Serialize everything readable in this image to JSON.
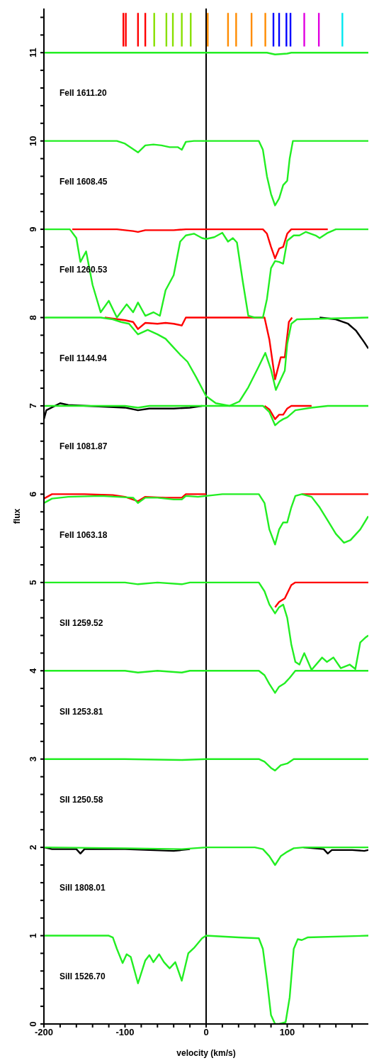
{
  "chart_data": {
    "type": "line",
    "xlabel": "velocity (km/s)",
    "ylabel": "flux",
    "xlim": [
      -200,
      200
    ],
    "xticks": [
      -200,
      {
        "value": -180,
        "label": null
      },
      {
        "value": -160,
        "label": null
      },
      {
        "value": -140,
        "label": null
      },
      {
        "value": -120,
        "label": null
      },
      -100,
      {
        "value": -80,
        "label": null
      },
      {
        "value": -60,
        "label": null
      },
      {
        "value": -40,
        "label": null
      },
      {
        "value": -20,
        "label": null
      },
      0,
      {
        "value": 20,
        "label": null
      },
      {
        "value": 40,
        "label": null
      },
      {
        "value": 60,
        "label": null
      },
      {
        "value": 80,
        "label": null
      },
      100,
      {
        "value": 120,
        "label": null
      },
      {
        "value": 140,
        "label": null
      },
      {
        "value": 160,
        "label": null
      },
      {
        "value": 180,
        "label": null
      }
    ],
    "ylim": [
      0,
      11.5
    ],
    "yticks": [
      0,
      {
        "value": 0.2,
        "label": null
      },
      {
        "value": 0.4,
        "label": null
      },
      {
        "value": 0.6,
        "label": null
      },
      {
        "value": 0.8,
        "label": null
      },
      1,
      {
        "value": 1.2,
        "label": null
      },
      {
        "value": 1.4,
        "label": null
      },
      {
        "value": 1.6,
        "label": null
      },
      {
        "value": 1.8,
        "label": null
      },
      2,
      {
        "value": 2.2,
        "label": null
      },
      {
        "value": 2.4,
        "label": null
      },
      {
        "value": 2.6,
        "label": null
      },
      {
        "value": 2.8,
        "label": null
      },
      3,
      {
        "value": 3.2,
        "label": null
      },
      {
        "value": 3.4,
        "label": null
      },
      {
        "value": 3.6,
        "label": null
      },
      {
        "value": 3.8,
        "label": null
      },
      4,
      {
        "value": 4.2,
        "label": null
      },
      {
        "value": 4.4,
        "label": null
      },
      {
        "value": 4.6,
        "label": null
      },
      {
        "value": 4.8,
        "label": null
      },
      5,
      {
        "value": 5.2,
        "label": null
      },
      {
        "value": 5.4,
        "label": null
      },
      {
        "value": 5.6,
        "label": null
      },
      {
        "value": 5.8,
        "label": null
      },
      6,
      {
        "value": 6.2,
        "label": null
      },
      {
        "value": 6.4,
        "label": null
      },
      {
        "value": 6.6,
        "label": null
      },
      {
        "value": 6.8,
        "label": null
      },
      7,
      {
        "value": 7.2,
        "label": null
      },
      {
        "value": 7.4,
        "label": null
      },
      {
        "value": 7.6,
        "label": null
      },
      {
        "value": 7.8,
        "label": null
      },
      8,
      {
        "value": 8.2,
        "label": null
      },
      {
        "value": 8.4,
        "label": null
      },
      {
        "value": 8.6,
        "label": null
      },
      {
        "value": 8.8,
        "label": null
      },
      9,
      {
        "value": 9.2,
        "label": null
      },
      {
        "value": 9.4,
        "label": null
      },
      {
        "value": 9.6,
        "label": null
      },
      {
        "value": 9.8,
        "label": null
      },
      10,
      {
        "value": 10.2,
        "label": null
      },
      {
        "value": 10.4,
        "label": null
      },
      {
        "value": 10.6,
        "label": null
      },
      {
        "value": 10.8,
        "label": null
      },
      11,
      {
        "value": 11.2,
        "label": null
      },
      {
        "value": 11.4,
        "label": null
      }
    ],
    "annotations": [
      "FeII 1611.20",
      "FeII 1608.45",
      "FeII 1260.53",
      "FeII 1144.94",
      "FeII 1081.87",
      "FeII 1063.18",
      "SII 1259.52",
      "SII 1253.81",
      "SII 1250.58",
      "SiII 1808.01",
      "SiII 1526.70"
    ],
    "ref_lines": [
      {
        "axis": "x",
        "value": 0,
        "color": "#000000"
      }
    ],
    "series": [
      {
        "color": "#ff0000",
        "x": [
          -102,
          -102
        ],
        "values": [
          11.07,
          11.45
        ]
      },
      {
        "color": "#ff0000",
        "x": [
          -99,
          -99
        ],
        "values": [
          11.07,
          11.45
        ]
      },
      {
        "color": "#ff0000",
        "x": [
          -84,
          -84
        ],
        "values": [
          11.07,
          11.45
        ]
      },
      {
        "color": "#ff0000",
        "x": [
          -75,
          -75
        ],
        "values": [
          11.07,
          11.45
        ]
      },
      {
        "color": "#88e000",
        "x": [
          -64,
          -64
        ],
        "values": [
          11.07,
          11.45
        ]
      },
      {
        "color": "#88e000",
        "x": [
          -49,
          -49
        ],
        "values": [
          11.07,
          11.45
        ]
      },
      {
        "color": "#88e000",
        "x": [
          -41,
          -41
        ],
        "values": [
          11.07,
          11.45
        ]
      },
      {
        "color": "#88e000",
        "x": [
          -30,
          -30
        ],
        "values": [
          11.07,
          11.45
        ]
      },
      {
        "color": "#88e000",
        "x": [
          -19,
          -19
        ],
        "values": [
          11.07,
          11.45
        ]
      },
      {
        "color": "#ff8c00",
        "x": [
          2,
          2
        ],
        "values": [
          11.07,
          11.45
        ]
      },
      {
        "color": "#ff8c00",
        "x": [
          27,
          27
        ],
        "values": [
          11.07,
          11.45
        ]
      },
      {
        "color": "#ff8c00",
        "x": [
          37,
          37
        ],
        "values": [
          11.07,
          11.45
        ]
      },
      {
        "color": "#ff8c00",
        "x": [
          56,
          56
        ],
        "values": [
          11.07,
          11.45
        ]
      },
      {
        "color": "#ff8c00",
        "x": [
          73,
          73
        ],
        "values": [
          11.07,
          11.45
        ]
      },
      {
        "color": "#0000ff",
        "x": [
          83,
          83
        ],
        "values": [
          11.07,
          11.45
        ]
      },
      {
        "color": "#0000ff",
        "x": [
          90,
          90
        ],
        "values": [
          11.07,
          11.45
        ]
      },
      {
        "color": "#0000ff",
        "x": [
          99,
          99
        ],
        "values": [
          11.07,
          11.45
        ]
      },
      {
        "color": "#0000ff",
        "x": [
          104,
          104
        ],
        "values": [
          11.07,
          11.45
        ]
      },
      {
        "color": "#e000e0",
        "x": [
          121,
          121
        ],
        "values": [
          11.07,
          11.45
        ]
      },
      {
        "color": "#e000e0",
        "x": [
          139,
          139
        ],
        "values": [
          11.07,
          11.45
        ]
      },
      {
        "color": "#00e8f0",
        "x": [
          168,
          168
        ],
        "values": [
          11.07,
          11.45
        ]
      },
      {
        "color": "#000000",
        "x": [
          140,
          160,
          175,
          185,
          195,
          200
        ],
        "values": [
          8,
          7.98,
          7.93,
          7.85,
          7.72,
          7.65
        ]
      },
      {
        "color": "#000000",
        "x": [
          -200,
          -197,
          -180,
          -170,
          -100,
          -84,
          -70,
          -40,
          -20,
          -5
        ],
        "values": [
          6.85,
          6.95,
          7.03,
          7.01,
          6.98,
          6.95,
          6.97,
          6.97,
          6.98,
          7
        ]
      },
      {
        "color": "#000000",
        "x": [
          -200,
          -190,
          -160,
          -155,
          -150,
          -100,
          -40,
          -20,
          0,
          120,
          145,
          150,
          155,
          180,
          195,
          200
        ],
        "values": [
          2,
          1.98,
          1.98,
          1.93,
          1.98,
          1.98,
          1.96,
          1.98,
          null,
          2,
          1.98,
          1.93,
          1.97,
          1.97,
          1.96,
          1.97
        ]
      },
      {
        "color": "#ff0000",
        "x": [
          -165,
          -110,
          -100,
          -90,
          -84,
          -75,
          -60,
          -40,
          -25,
          0,
          70,
          75,
          80,
          85,
          90,
          95,
          100,
          105,
          150
        ],
        "values": [
          9,
          9,
          8.99,
          8.98,
          8.97,
          8.99,
          8.99,
          8.99,
          9,
          9,
          9,
          8.95,
          8.8,
          8.67,
          8.78,
          8.8,
          8.95,
          9,
          9
        ]
      },
      {
        "color": "#ff0000",
        "x": [
          -125,
          -100,
          -90,
          -84,
          -75,
          -60,
          -50,
          -40,
          -30,
          -25,
          55,
          72,
          78,
          85,
          92,
          97,
          102,
          106
        ],
        "values": [
          8,
          7.97,
          7.95,
          7.87,
          7.94,
          7.93,
          7.94,
          7.93,
          7.91,
          8,
          8,
          8,
          7.75,
          7.3,
          7.55,
          7.55,
          7.95,
          8
        ]
      },
      {
        "color": "#ff0000",
        "x": [
          72,
          78,
          85,
          90,
          95,
          100,
          105,
          130
        ],
        "values": [
          7,
          6.96,
          6.85,
          6.9,
          6.9,
          6.97,
          7,
          7
        ]
      },
      {
        "color": "#ff0000",
        "x": [
          -200,
          -190,
          -150,
          -115,
          -100,
          -84,
          -75,
          -50,
          -30,
          -25,
          0,
          60,
          118,
          130,
          200
        ],
        "values": [
          5.95,
          6,
          6,
          5.99,
          5.97,
          5.92,
          5.97,
          5.96,
          5.96,
          6,
          6,
          null,
          6,
          6,
          6
        ]
      },
      {
        "color": "#ff0000",
        "x": [
          85,
          90,
          97,
          105,
          110,
          200
        ],
        "values": [
          4.72,
          4.78,
          4.82,
          4.97,
          5,
          5
        ]
      },
      {
        "color": "#22ee22",
        "x": [
          -200,
          75,
          85,
          100,
          105,
          200
        ],
        "values": [
          11,
          11,
          10.98,
          10.99,
          11,
          11
        ]
      },
      {
        "color": "#22ee22",
        "x": [
          -200,
          -110,
          -100,
          -84,
          -75,
          -65,
          -55,
          -45,
          -35,
          -30,
          -25,
          -15,
          0,
          65,
          70,
          75,
          80,
          85,
          90,
          95,
          100,
          103,
          107,
          200
        ],
        "values": [
          10,
          10,
          9.97,
          9.87,
          9.95,
          9.96,
          9.95,
          9.93,
          9.93,
          9.9,
          9.99,
          10,
          10,
          10,
          9.9,
          9.6,
          9.4,
          9.27,
          9.35,
          9.5,
          9.55,
          9.8,
          10,
          10
        ]
      },
      {
        "color": "#22ee22",
        "x": [
          -200,
          -168,
          -160,
          -155,
          -148,
          -140,
          -130,
          -120,
          -110,
          -98,
          -90,
          -84,
          -75,
          -65,
          -57,
          -50,
          -40,
          -32,
          -25,
          -15,
          -5,
          0,
          10,
          20,
          27,
          33,
          38,
          45,
          52,
          60,
          70,
          75,
          80,
          85,
          90,
          95,
          100,
          108,
          115,
          123,
          135,
          140,
          150,
          160,
          200
        ],
        "values": [
          9,
          9,
          8.9,
          8.63,
          8.75,
          8.37,
          8.06,
          8.19,
          8,
          8.15,
          8.06,
          8.17,
          8.02,
          8.06,
          8.02,
          8.31,
          8.48,
          8.86,
          8.93,
          8.95,
          8.9,
          8.89,
          8.91,
          8.96,
          8.86,
          8.9,
          8.85,
          8.42,
          8.02,
          8,
          8,
          8.21,
          8.56,
          8.64,
          8.63,
          8.61,
          8.87,
          8.93,
          8.93,
          8.97,
          8.93,
          8.9,
          8.96,
          9,
          9
        ]
      },
      {
        "color": "#22ee22",
        "x": [
          -200,
          -130,
          -115,
          -105,
          -95,
          -84,
          -72,
          -60,
          -50,
          -40,
          -32,
          -23,
          -12,
          0,
          12,
          29,
          41,
          52,
          64,
          73,
          80,
          86,
          91,
          97,
          100,
          105,
          112,
          200
        ],
        "values": [
          8,
          8,
          7.98,
          7.95,
          7.93,
          7.81,
          7.86,
          7.81,
          7.76,
          7.66,
          7.58,
          7.5,
          7.32,
          7.11,
          7.03,
          7,
          7.05,
          7.21,
          7.43,
          7.6,
          7.41,
          7.18,
          7.28,
          7.4,
          7.7,
          7.93,
          7.98,
          8
        ]
      },
      {
        "color": "#22ee22",
        "x": [
          -200,
          -100,
          -84,
          -70,
          0,
          70,
          78,
          85,
          90,
          95,
          100,
          110,
          130,
          150,
          200
        ],
        "values": [
          7,
          7,
          6.98,
          7,
          7,
          7,
          6.93,
          6.78,
          6.82,
          6.85,
          6.87,
          6.95,
          6.98,
          7,
          7
        ]
      },
      {
        "color": "#22ee22",
        "x": [
          -200,
          -190,
          -170,
          -130,
          -110,
          -90,
          -84,
          -75,
          -60,
          -50,
          -40,
          -30,
          -25,
          -10,
          0,
          20,
          65,
          72,
          78,
          85,
          90,
          95,
          100,
          105,
          110,
          118,
          130,
          140,
          150,
          160,
          170,
          178,
          190,
          200
        ],
        "values": [
          5.9,
          5.95,
          5.97,
          5.98,
          5.97,
          5.96,
          5.9,
          5.96,
          5.96,
          5.95,
          5.94,
          5.94,
          5.98,
          5.97,
          5.98,
          6,
          6,
          5.9,
          5.6,
          5.43,
          5.6,
          5.68,
          5.68,
          5.85,
          5.98,
          6,
          5.97,
          5.85,
          5.7,
          5.55,
          5.45,
          5.48,
          5.6,
          5.75
        ]
      },
      {
        "color": "#22ee22",
        "x": [
          -200,
          -100,
          -84,
          -60,
          -30,
          -20,
          0,
          65,
          72,
          78,
          85,
          90,
          95,
          100,
          105,
          110,
          115,
          121,
          130,
          143,
          149,
          157,
          166,
          177,
          184,
          190,
          197,
          200
        ],
        "values": [
          5,
          5,
          4.98,
          5,
          4.98,
          5,
          5,
          5,
          4.9,
          4.75,
          4.65,
          4.72,
          4.75,
          4.6,
          4.3,
          4.1,
          4.07,
          4.2,
          4.01,
          4.15,
          4.1,
          4.15,
          4.03,
          4.07,
          4.02,
          4.32,
          4.38,
          4.4
        ]
      },
      {
        "color": "#22ee22",
        "x": [
          -200,
          -100,
          -84,
          -60,
          -30,
          -20,
          0,
          65,
          72,
          78,
          85,
          90,
          97,
          103,
          110,
          200
        ],
        "values": [
          4,
          4,
          3.98,
          4,
          3.98,
          4,
          4,
          4,
          3.95,
          3.85,
          3.75,
          3.82,
          3.86,
          3.92,
          4,
          4
        ]
      },
      {
        "color": "#22ee22",
        "x": [
          -200,
          -100,
          -30,
          0,
          65,
          72,
          80,
          85,
          92,
          100,
          108,
          200
        ],
        "values": [
          3,
          3,
          2.99,
          3,
          3,
          2.97,
          2.9,
          2.87,
          2.93,
          2.95,
          3,
          3
        ]
      },
      {
        "color": "#22ee22",
        "x": [
          -200,
          -100,
          -30,
          0,
          60,
          70,
          78,
          85,
          92,
          100,
          108,
          120,
          200
        ],
        "values": [
          2,
          1.99,
          1.98,
          2,
          2,
          1.98,
          1.9,
          1.8,
          1.9,
          1.95,
          1.99,
          2,
          2
        ]
      },
      {
        "color": "#22ee22",
        "x": [
          -200,
          -120,
          -115,
          -110,
          -103,
          -98,
          -93,
          -84,
          -75,
          -70,
          -65,
          -58,
          -52,
          -45,
          -38,
          -30,
          -22,
          -15,
          -5,
          0,
          40,
          65,
          70,
          75,
          80,
          85,
          90,
          98,
          103,
          108,
          113,
          118,
          125,
          200
        ],
        "values": [
          1,
          1,
          0.98,
          0.85,
          0.69,
          0.79,
          0.76,
          0.46,
          0.72,
          0.78,
          0.7,
          0.79,
          0.7,
          0.63,
          0.7,
          0.49,
          0.8,
          0.86,
          0.97,
          1,
          0.98,
          0.97,
          0.85,
          0.5,
          0.1,
          0,
          0,
          0.02,
          0.3,
          0.85,
          0.96,
          0.95,
          0.98,
          1
        ]
      }
    ]
  }
}
